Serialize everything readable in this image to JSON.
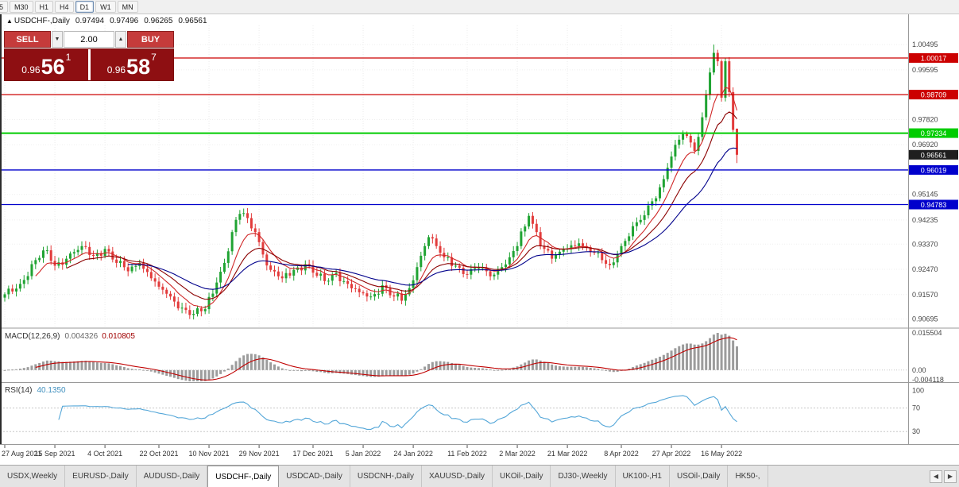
{
  "toolbar": {
    "timeframes": [
      {
        "label": "5",
        "active": false
      },
      {
        "label": "M30",
        "active": false
      },
      {
        "label": "H1",
        "active": false
      },
      {
        "label": "H4",
        "active": false
      },
      {
        "label": "D1",
        "active": true
      },
      {
        "label": "W1",
        "active": false
      },
      {
        "label": "MN",
        "active": false
      }
    ]
  },
  "chart_header": {
    "collapse_icon": "▲",
    "symbol": "USDCHF-,Daily",
    "open": "0.97494",
    "high": "0.97496",
    "low": "0.96265",
    "close": "0.96561"
  },
  "trade_panel": {
    "sell_label": "SELL",
    "buy_label": "BUY",
    "volume": "2.00",
    "volume_down_icon": "▼",
    "volume_up_icon": "▲",
    "sell_price": {
      "prefix": "0.96",
      "big": "56",
      "sup": "1"
    },
    "buy_price": {
      "prefix": "0.96",
      "big": "58",
      "sup": "7"
    }
  },
  "colors": {
    "trade_button": "#C53B3B",
    "price_panel": "#8E0F12",
    "candle_up": "#1FA332",
    "candle_down": "#E23B3B",
    "macd_hist": "#9C9C9C",
    "macd_signal": "#C00000",
    "rsi_line": "#53A6D8",
    "current_label_bg": "#1F1F1F"
  },
  "chart_data": {
    "type": "candlestick",
    "symbol": "USDCHF",
    "timeframe": "Daily",
    "y_range": [
      0.904,
      1.0118
    ],
    "period_high": 1.00495,
    "period_low": 0.9068,
    "price_ticks": [
      "1.00495",
      "0.99595",
      "0.97820",
      "0.96920",
      "0.95145",
      "0.94235",
      "0.93370",
      "0.92470",
      "0.91570",
      "0.90695"
    ],
    "hlines": [
      {
        "price": 1.00017,
        "label": "1.00017",
        "color": "#CC0000",
        "width": 1.3
      },
      {
        "price": 0.98709,
        "label": "0.98709",
        "color": "#CC0000",
        "width": 1.3
      },
      {
        "price": 0.97334,
        "label": "0.97334",
        "color": "#00CC00",
        "width": 2
      },
      {
        "price": 0.96019,
        "label": "0.96019",
        "color": "#0000CC",
        "width": 1.3
      },
      {
        "price": 0.94783,
        "label": "0.94783",
        "color": "#0000CC",
        "width": 1.3
      }
    ],
    "current_price": {
      "price": 0.96561,
      "label": "0.96561"
    },
    "candle_count": 191,
    "close_anchors": [
      [
        0,
        0.9158
      ],
      [
        4,
        0.9195
      ],
      [
        8,
        0.928
      ],
      [
        11,
        0.9315
      ],
      [
        13,
        0.926
      ],
      [
        16,
        0.9285
      ],
      [
        20,
        0.933
      ],
      [
        23,
        0.9295
      ],
      [
        26,
        0.932
      ],
      [
        29,
        0.927
      ],
      [
        32,
        0.924
      ],
      [
        35,
        0.927
      ],
      [
        38,
        0.9215
      ],
      [
        40,
        0.9185
      ],
      [
        43,
        0.915
      ],
      [
        46,
        0.911
      ],
      [
        49,
        0.9088
      ],
      [
        52,
        0.9105
      ],
      [
        55,
        0.92
      ],
      [
        57,
        0.927
      ],
      [
        59,
        0.938
      ],
      [
        61,
        0.9445
      ],
      [
        63,
        0.943
      ],
      [
        65,
        0.938
      ],
      [
        67,
        0.93
      ],
      [
        69,
        0.9245
      ],
      [
        72,
        0.9215
      ],
      [
        75,
        0.9245
      ],
      [
        78,
        0.9265
      ],
      [
        80,
        0.9235
      ],
      [
        83,
        0.9205
      ],
      [
        86,
        0.9235
      ],
      [
        89,
        0.9195
      ],
      [
        92,
        0.9165
      ],
      [
        95,
        0.915
      ],
      [
        98,
        0.919
      ],
      [
        101,
        0.915
      ],
      [
        103,
        0.9135
      ],
      [
        105,
        0.918
      ],
      [
        107,
        0.9255
      ],
      [
        109,
        0.933
      ],
      [
        110,
        0.9362
      ],
      [
        112,
        0.933
      ],
      [
        114,
        0.929
      ],
      [
        117,
        0.926
      ],
      [
        120,
        0.9228
      ],
      [
        123,
        0.9252
      ],
      [
        126,
        0.9222
      ],
      [
        129,
        0.9255
      ],
      [
        131,
        0.929
      ],
      [
        133,
        0.933
      ],
      [
        135,
        0.94
      ],
      [
        136,
        0.9438
      ],
      [
        138,
        0.938
      ],
      [
        140,
        0.932
      ],
      [
        142,
        0.9285
      ],
      [
        144,
        0.931
      ],
      [
        146,
        0.9322
      ],
      [
        149,
        0.934
      ],
      [
        152,
        0.931
      ],
      [
        155,
        0.928
      ],
      [
        157,
        0.9262
      ],
      [
        159,
        0.93
      ],
      [
        160,
        0.933
      ],
      [
        162,
        0.9365
      ],
      [
        164,
        0.9415
      ],
      [
        166,
        0.944
      ],
      [
        168,
        0.949
      ],
      [
        170,
        0.954
      ],
      [
        172,
        0.961
      ],
      [
        173,
        0.965
      ],
      [
        175,
        0.971
      ],
      [
        176,
        0.973
      ],
      [
        178,
        0.97
      ],
      [
        179,
        0.967
      ],
      [
        180,
        0.972
      ],
      [
        181,
        0.979
      ],
      [
        182,
        0.987
      ],
      [
        183,
        0.995
      ],
      [
        184,
        1.002
      ],
      [
        185,
        0.999
      ],
      [
        186,
        0.986
      ],
      [
        187,
        0.999
      ],
      [
        188,
        0.988
      ],
      [
        189,
        0.9745
      ],
      [
        190,
        0.96561
      ]
    ],
    "last_candle": {
      "open": 0.97494,
      "high": 0.97496,
      "low": 0.96265,
      "close": 0.96561
    },
    "ma": [
      {
        "period": 8,
        "color": "#D02828"
      },
      {
        "period": 16,
        "color": "#8B0000"
      },
      {
        "period": 32,
        "color": "#00008B"
      }
    ],
    "date_labels": [
      {
        "i": 0,
        "label": "27 Aug 2021"
      },
      {
        "i": 13,
        "label": "15 Sep 2021"
      },
      {
        "i": 26,
        "label": "4 Oct 2021"
      },
      {
        "i": 40,
        "label": "22 Oct 2021"
      },
      {
        "i": 53,
        "label": "10 Nov 2021"
      },
      {
        "i": 66,
        "label": "29 Nov 2021"
      },
      {
        "i": 80,
        "label": "17 Dec 2021"
      },
      {
        "i": 93,
        "label": "5 Jan 2022"
      },
      {
        "i": 106,
        "label": "24 Jan 2022"
      },
      {
        "i": 120,
        "label": "11 Feb 2022"
      },
      {
        "i": 133,
        "label": "2 Mar 2022"
      },
      {
        "i": 146,
        "label": "21 Mar 2022"
      },
      {
        "i": 160,
        "label": "8 Apr 2022"
      },
      {
        "i": 173,
        "label": "27 Apr 2022"
      },
      {
        "i": 186,
        "label": "16 May 2022"
      }
    ],
    "indicators": {
      "macd": {
        "name": "MACD(12,26,9)",
        "value_main": "0.004326",
        "value_signal": "0.010805",
        "params": [
          12,
          26,
          9
        ],
        "range": [
          -0.0047,
          0.0165
        ],
        "axis_labels": [
          {
            "v": 0.015504,
            "t": "0.015504"
          },
          {
            "v": 0,
            "t": "0.00"
          },
          {
            "v": -0.004118,
            "t": "-0.004118"
          }
        ]
      },
      "rsi": {
        "name": "RSI(14)",
        "value": "40.1350",
        "period": 14,
        "range": [
          10,
          110
        ],
        "levels": [
          70,
          30
        ],
        "axis_labels": [
          {
            "v": 100,
            "t": "100"
          },
          {
            "v": 70,
            "t": "70"
          },
          {
            "v": 30,
            "t": "30"
          }
        ]
      }
    }
  },
  "tabs": {
    "scroll_left_icon": "◀",
    "scroll_right_icon": "▶",
    "items": [
      {
        "label": "USDX,Weekly",
        "active": false
      },
      {
        "label": "EURUSD-,Daily",
        "active": false
      },
      {
        "label": "AUDUSD-,Daily",
        "active": false
      },
      {
        "label": "USDCHF-,Daily",
        "active": true
      },
      {
        "label": "USDCAD-,Daily",
        "active": false
      },
      {
        "label": "USDCNH-,Daily",
        "active": false
      },
      {
        "label": "XAUUSD-,Daily",
        "active": false
      },
      {
        "label": "UKOil-,Daily",
        "active": false
      },
      {
        "label": "DJ30-,Weekly",
        "active": false
      },
      {
        "label": "UK100-,H1",
        "active": false
      },
      {
        "label": "USOil-,Daily",
        "active": false
      },
      {
        "label": "HK50-,",
        "active": false
      }
    ]
  }
}
